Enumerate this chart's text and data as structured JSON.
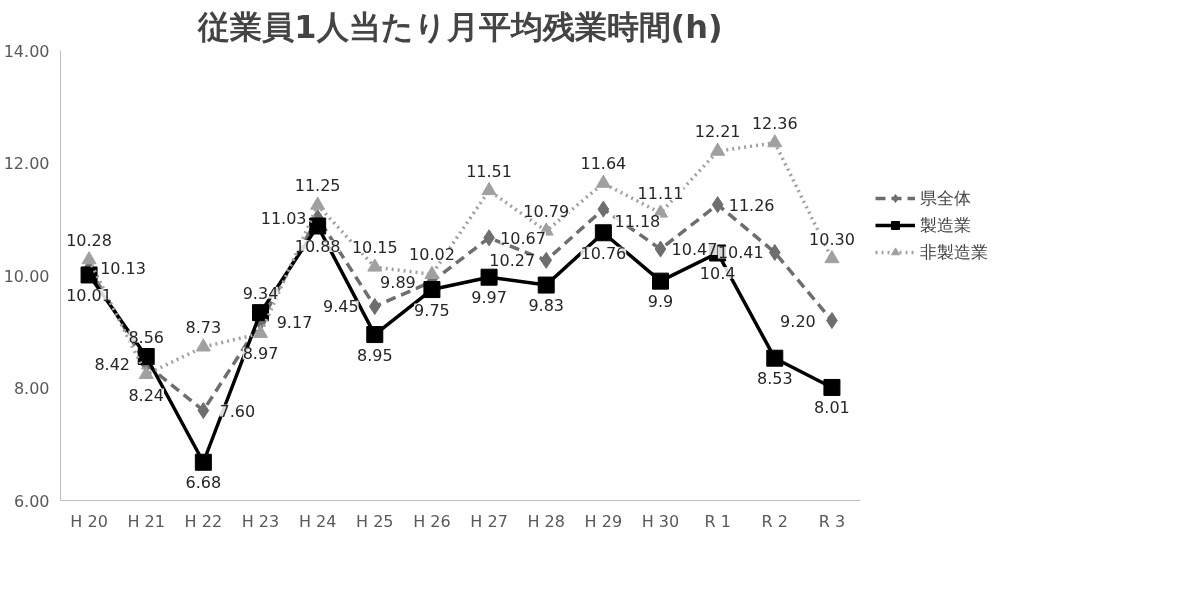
{
  "chart_data": {
    "type": "line",
    "title": "従業員1人当たり月平均残業時間(h)",
    "categories": [
      "H 20",
      "H 21",
      "H 22",
      "H 23",
      "H 24",
      "H 25",
      "H 26",
      "H 27",
      "H 28",
      "H 29",
      "H 30",
      "R 1",
      "R 2",
      "R 3"
    ],
    "series": [
      {
        "name": "県全体",
        "color": "#6e6e6e",
        "marker": "diamond",
        "line_style": "dashed",
        "values": [
          10.13,
          8.42,
          7.6,
          9.17,
          11.03,
          9.45,
          9.89,
          10.67,
          10.27,
          11.18,
          10.47,
          11.26,
          10.41,
          9.2
        ],
        "value_labels": [
          "10.13",
          "8.42",
          "7.60",
          "9.17",
          "11.03",
          "9.45",
          "9.89",
          "10.67",
          "10.27",
          "11.18",
          "10.47",
          "11.26",
          "10.41",
          "9.20"
        ]
      },
      {
        "name": "製造業",
        "color": "#000000",
        "marker": "square",
        "line_style": "solid",
        "values": [
          10.01,
          8.56,
          6.68,
          9.34,
          10.88,
          8.95,
          9.75,
          9.97,
          9.83,
          10.76,
          9.9,
          10.4,
          8.53,
          8.01
        ],
        "value_labels": [
          "10.01",
          "8.56",
          "6.68",
          "9.34",
          "10.88",
          "8.95",
          "9.75",
          "9.97",
          "9.83",
          "10.76",
          "9.9",
          "10.4",
          "8.53",
          "8.01"
        ]
      },
      {
        "name": "非製造業",
        "color": "#a0a0a0",
        "marker": "triangle",
        "line_style": "dotted",
        "values": [
          10.28,
          8.24,
          8.73,
          8.97,
          11.25,
          10.15,
          10.02,
          11.51,
          10.79,
          11.64,
          11.11,
          12.21,
          12.36,
          10.3
        ],
        "value_labels": [
          "10.28",
          "8.24",
          "8.73",
          "8.97",
          "11.25",
          "10.15",
          "10.02",
          "11.51",
          "10.79",
          "11.64",
          "11.11",
          "12.21",
          "12.36",
          "10.30"
        ]
      }
    ],
    "ylim": [
      6,
      14
    ],
    "yticks": [
      {
        "value": 6,
        "label": "6.00"
      },
      {
        "value": 8,
        "label": "8.00"
      },
      {
        "value": 10,
        "label": "10.00"
      },
      {
        "value": 12,
        "label": "12.00"
      },
      {
        "value": 14,
        "label": "14.00"
      }
    ],
    "grid": false,
    "legend": "right"
  }
}
